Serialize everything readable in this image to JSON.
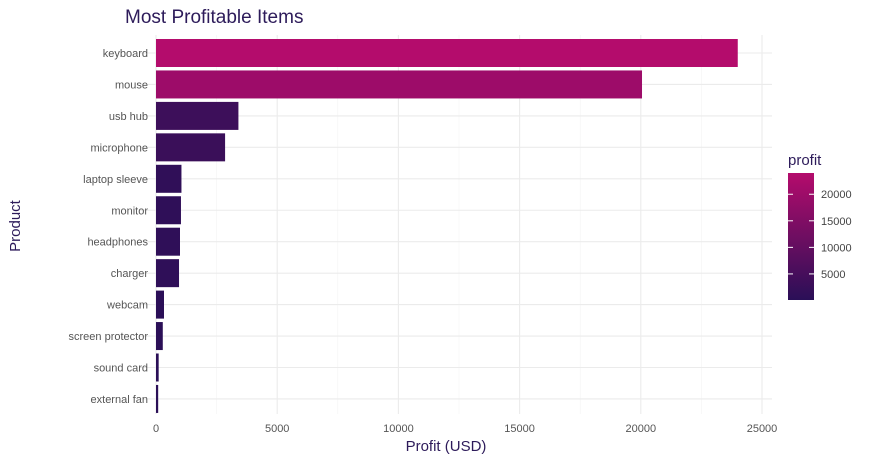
{
  "chart_data": {
    "type": "bar",
    "orientation": "horizontal",
    "title": "Most Profitable Items",
    "xlabel": "Profit (USD)",
    "ylabel": "Product",
    "categories": [
      "keyboard",
      "mouse",
      "usb hub",
      "microphone",
      "laptop sleeve",
      "monitor",
      "headphones",
      "charger",
      "webcam",
      "screen protector",
      "sound card",
      "external fan"
    ],
    "values": [
      24000,
      20050,
      3400,
      2850,
      1050,
      1030,
      990,
      950,
      330,
      280,
      110,
      90
    ],
    "xlim": [
      0,
      25000
    ],
    "xticks": [
      0,
      5000,
      10000,
      15000,
      20000,
      25000
    ],
    "grid": true,
    "legend": {
      "title": "profit",
      "position": "right",
      "ticks": [
        5000,
        10000,
        15000,
        20000
      ],
      "range": [
        90,
        24000
      ],
      "low_color": "#2a0f57",
      "high_color": "#b40c6c"
    }
  }
}
